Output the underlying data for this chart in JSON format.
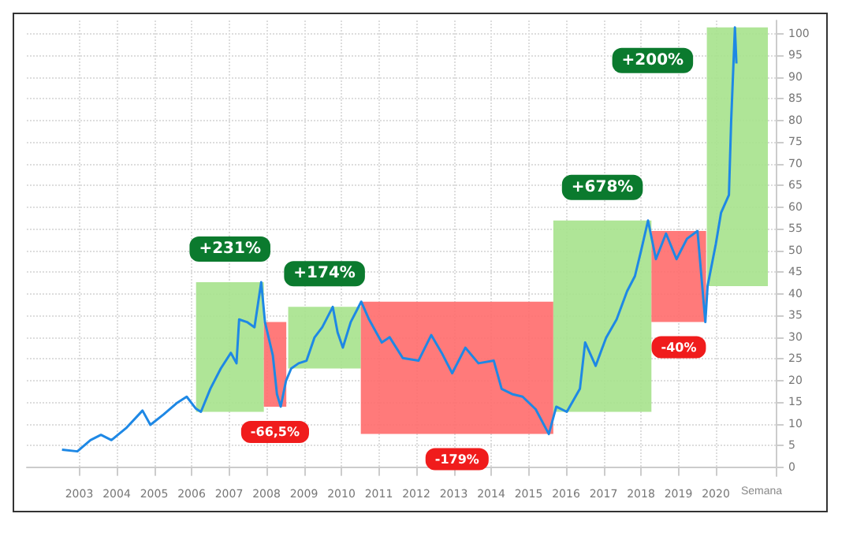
{
  "chart_data": {
    "type": "line",
    "xlabel": "Semana",
    "x": [
      2003.04,
      2003.45,
      2003.8,
      2004.08,
      2004.36,
      2004.77,
      2005.19,
      2005.4,
      2005.75,
      2006.1,
      2006.37,
      2006.61,
      2006.75,
      2007.0,
      2007.28,
      2007.55,
      2007.7,
      2007.77,
      2007.98,
      2008.18,
      2008.36,
      2008.46,
      2008.67,
      2008.78,
      2008.88,
      2009.02,
      2009.16,
      2009.36,
      2009.57,
      2009.78,
      2009.99,
      2010.27,
      2010.4,
      2010.54,
      2010.75,
      2011.03,
      2011.24,
      2011.58,
      2011.79,
      2012.14,
      2012.56,
      2012.9,
      2013.18,
      2013.46,
      2013.81,
      2014.16,
      2014.57,
      2014.78,
      2015.06,
      2015.34,
      2015.69,
      2016.04,
      2016.24,
      2016.52,
      2016.87,
      2017.01,
      2017.29,
      2017.57,
      2017.85,
      2018.13,
      2018.34,
      2018.5,
      2018.69,
      2018.9,
      2019.17,
      2019.45,
      2019.73,
      2020.01,
      2020.22,
      2020.28,
      2020.5,
      2020.64,
      2020.85,
      2020.91,
      2021.01,
      2021.05
    ],
    "series": [
      {
        "color": "#1e88e5",
        "values": [
          4.1,
          3.7,
          6.3,
          7.5,
          6.3,
          9.2,
          13.1,
          9.8,
          12.2,
          14.8,
          16.3,
          13.6,
          12.8,
          18.1,
          22.8,
          26.4,
          24.0,
          34.1,
          33.5,
          32.3,
          42.7,
          33.5,
          25.8,
          16.9,
          14.0,
          19.9,
          22.8,
          24.0,
          24.6,
          29.9,
          32.3,
          37.0,
          31.1,
          27.6,
          33.5,
          38.2,
          34.1,
          28.8,
          30.0,
          25.2,
          24.6,
          30.5,
          26.4,
          21.7,
          27.6,
          24.0,
          24.6,
          18.1,
          16.9,
          16.3,
          13.4,
          7.7,
          14.0,
          12.8,
          18.1,
          28.8,
          23.4,
          29.9,
          34.1,
          40.6,
          44.1,
          49.8,
          56.9,
          48.0,
          53.9,
          48.0,
          52.7,
          54.5,
          33.5,
          41.8,
          51.5,
          58.7,
          62.8,
          80.0,
          101.4,
          93.1
        ]
      }
    ],
    "bands": [
      {
        "axis": "x",
        "from": 2006.62,
        "to": 2008.43,
        "label": "+231%",
        "color": "#a6e28c"
      },
      {
        "axis": "x",
        "from": 2008.43,
        "to": 2009.03,
        "label": "-66,5%",
        "color": "#ff6b6b"
      },
      {
        "axis": "x",
        "from": 2009.08,
        "to": 2011.02,
        "label": "+174%",
        "color": "#a6e28c"
      },
      {
        "axis": "x",
        "from": 2011.02,
        "to": 2016.16,
        "label": "-179%",
        "color": "#ff6b6b"
      },
      {
        "axis": "x",
        "from": 2016.16,
        "to": 2018.78,
        "label": "+678%",
        "color": "#a6e28c"
      },
      {
        "axis": "x",
        "from": 2018.78,
        "to": 2020.24,
        "label": "-40%",
        "color": "#ff6b6b"
      },
      {
        "axis": "x",
        "from": 2020.26,
        "to": 2021.89,
        "label": "+200%",
        "color": "#a6e28c"
      }
    ],
    "xlim": [
      2002.1,
      2022.1
    ],
    "xticks": [
      {
        "value": 2003.5,
        "label": "2003"
      },
      {
        "value": 2004.5,
        "label": "2004"
      },
      {
        "value": 2005.5,
        "label": "2005"
      },
      {
        "value": 2006.5,
        "label": "2006"
      },
      {
        "value": 2007.5,
        "label": "2007"
      },
      {
        "value": 2008.5,
        "label": "2008"
      },
      {
        "value": 2009.5,
        "label": "2009"
      },
      {
        "value": 2010.5,
        "label": "2010"
      },
      {
        "value": 2011.5,
        "label": "2011"
      },
      {
        "value": 2012.5,
        "label": "2012"
      },
      {
        "value": 2013.5,
        "label": "2013"
      },
      {
        "value": 2014.5,
        "label": "2014"
      },
      {
        "value": 2015.5,
        "label": "2015"
      },
      {
        "value": 2016.5,
        "label": "2016"
      },
      {
        "value": 2017.5,
        "label": "2017"
      },
      {
        "value": 2018.5,
        "label": "2018"
      },
      {
        "value": 2019.5,
        "label": "2019"
      },
      {
        "value": 2020.5,
        "label": "2020"
      }
    ],
    "ylim": [
      -2,
      103
    ],
    "yticks": [
      0,
      5,
      10,
      15,
      20,
      25,
      30,
      35,
      40,
      45,
      50,
      55,
      60,
      65,
      70,
      75,
      80,
      85,
      90,
      95,
      100
    ],
    "grid": true,
    "marker": "none",
    "line_style": "solid"
  }
}
